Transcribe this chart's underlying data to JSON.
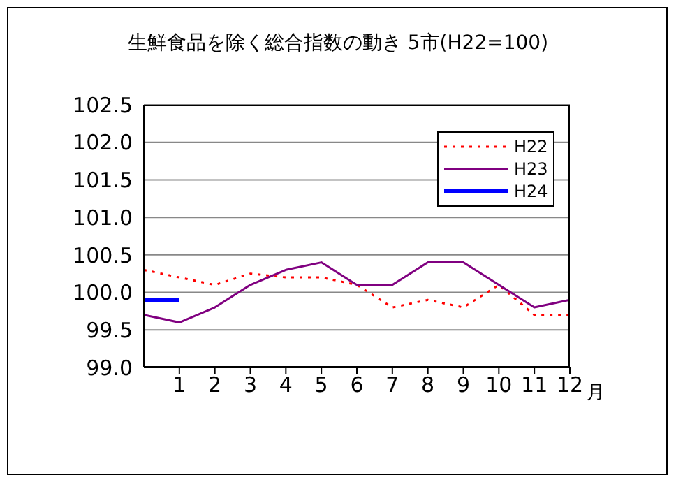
{
  "chart_data": {
    "type": "line",
    "title": "生鮮食品を除く総合指数の動き 5市(H22=100)",
    "xlabel": "月",
    "x": [
      0,
      1,
      2,
      3,
      4,
      5,
      6,
      7,
      8,
      9,
      10,
      11,
      12
    ],
    "xlim": [
      0,
      12
    ],
    "xticks": [
      1,
      2,
      3,
      4,
      5,
      6,
      7,
      8,
      9,
      10,
      11,
      12
    ],
    "ylim": [
      99,
      102.5
    ],
    "yticks": [
      {
        "value": 99,
        "label": "99.0"
      },
      99.5,
      {
        "value": 100,
        "label": "100.0"
      },
      100.5,
      {
        "value": 101,
        "label": "101.0"
      },
      101.5,
      {
        "value": 102,
        "label": "102.0"
      },
      102.5
    ],
    "grid": "y",
    "legend": "top right",
    "marker": "none",
    "series": [
      {
        "name": "H22",
        "color": "#ff0000",
        "line_style": "dotted",
        "values": [
          100.3,
          100.2,
          100.1,
          100.25,
          100.2,
          100.2,
          100.1,
          99.8,
          99.9,
          99.8,
          100.1,
          99.7,
          99.7
        ]
      },
      {
        "name": "H23",
        "color": "#800080",
        "line_style": "solid",
        "values": [
          99.7,
          99.6,
          99.8,
          100.1,
          100.3,
          100.4,
          100.1,
          100.1,
          100.4,
          100.4,
          100.1,
          99.8,
          99.9
        ]
      },
      {
        "name": "H24",
        "color": "#0000ff",
        "line_style": "solid",
        "values": [
          99.9,
          99.9,
          null,
          null,
          null,
          null,
          null,
          null,
          null,
          null,
          null,
          null,
          null
        ]
      }
    ]
  }
}
